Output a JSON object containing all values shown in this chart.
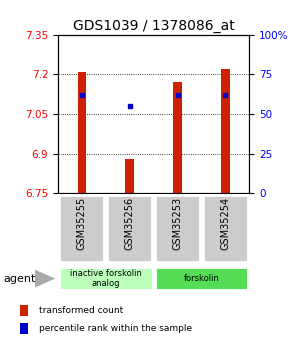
{
  "title": "GDS1039 / 1378086_at",
  "samples": [
    "GSM35255",
    "GSM35256",
    "GSM35253",
    "GSM35254"
  ],
  "bar_values": [
    7.21,
    6.88,
    7.17,
    7.22
  ],
  "bar_bottom": 6.75,
  "blue_dot_values": [
    7.12,
    7.08,
    7.12,
    7.12
  ],
  "ylim": [
    6.75,
    7.35
  ],
  "yticks_left": [
    7.35,
    7.2,
    7.05,
    6.9,
    6.75
  ],
  "yticks_right": [
    100,
    75,
    50,
    25,
    0
  ],
  "ytick_right_labels": [
    "100%",
    "75",
    "50",
    "25",
    "0"
  ],
  "bar_color": "#cc2200",
  "blue_color": "#0000cc",
  "groups": [
    {
      "label": "inactive forskolin\nanalog",
      "samples": [
        0,
        1
      ],
      "color": "#bbffbb"
    },
    {
      "label": "forskolin",
      "samples": [
        2,
        3
      ],
      "color": "#55dd55"
    }
  ],
  "legend_red_label": "transformed count",
  "legend_blue_label": "percentile rank within the sample",
  "agent_label": "agent",
  "title_fontsize": 10,
  "tick_fontsize": 7.5,
  "bar_width": 0.18,
  "sample_box_color": "#cccccc",
  "background_color": "#ffffff"
}
